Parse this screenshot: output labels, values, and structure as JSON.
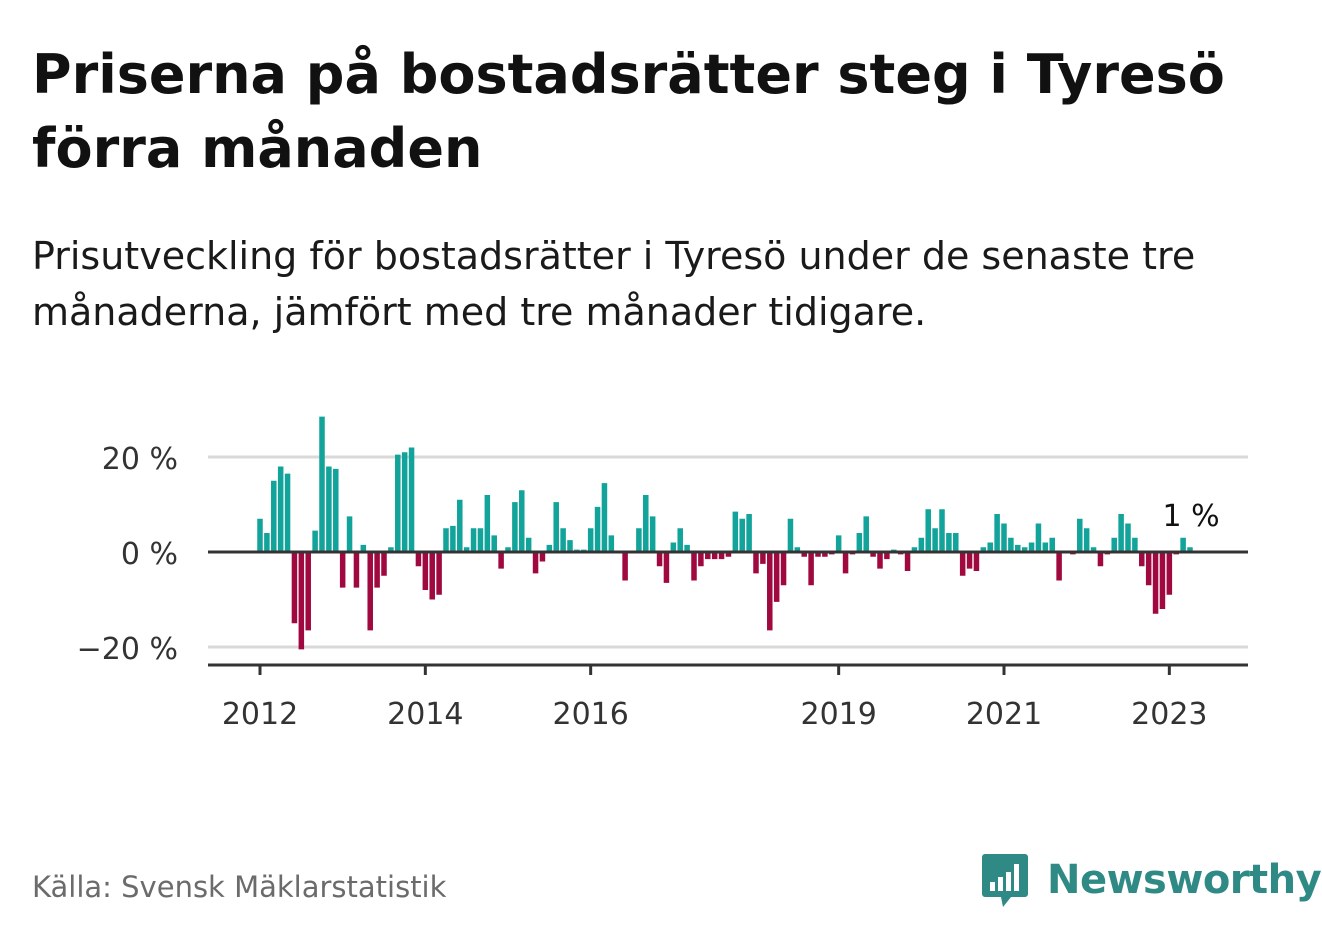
{
  "title": "Priserna på bostadsrätter steg i Tyresö förra månaden",
  "subtitle": "Prisutveckling för bostadsrätter i Tyresö under de senaste tre månaderna, jämfört med tre månader tidigare.",
  "source": "Källa: Svensk Mäklarstatistik",
  "logo_text": "Newsworthy",
  "colors": {
    "positive": "#12a39a",
    "negative": "#a0093f",
    "axis": "#333333",
    "grid": "#d9d9d9",
    "logo": "#2f8a86"
  },
  "chart_data": {
    "type": "bar",
    "ylim": [
      -23,
      30
    ],
    "yticks": [
      {
        "value": 20,
        "label": "20 %"
      },
      {
        "value": 0,
        "label": "0 %"
      },
      {
        "value": -20,
        "label": "−20 %"
      }
    ],
    "xticks": [
      {
        "value": 2012,
        "label": "2012"
      },
      {
        "value": 2014,
        "label": "2014"
      },
      {
        "value": 2016,
        "label": "2016"
      },
      {
        "value": 2019,
        "label": "2019"
      },
      {
        "value": 2021,
        "label": "2021"
      },
      {
        "value": 2023,
        "label": "2023"
      }
    ],
    "start": 2012,
    "step": 0.0833,
    "values": [
      7,
      4,
      15,
      18,
      16.5,
      -15,
      -20.5,
      -16.5,
      4.5,
      28.5,
      18,
      17.5,
      -7.5,
      7.5,
      -7.5,
      1.5,
      -16.5,
      -7.5,
      -5,
      1,
      20.5,
      21,
      22,
      -3,
      -8,
      -10,
      -9,
      5,
      5.5,
      11,
      1,
      5,
      5,
      12,
      3.5,
      -3.5,
      1,
      10.5,
      13,
      3,
      -4.5,
      -2,
      1.5,
      10.5,
      5,
      2.5,
      0.5,
      0.5,
      5,
      9.5,
      14.5,
      3.5,
      0,
      -6,
      0,
      5,
      12,
      7.5,
      -3,
      -6.5,
      2,
      5,
      1.5,
      -6,
      -3,
      -1.5,
      -1.5,
      -1.5,
      -1,
      8.5,
      7,
      8,
      -4.5,
      -2.5,
      -16.5,
      -10.5,
      -7,
      7,
      1,
      -1,
      -7,
      -1,
      -1,
      -0.5,
      3.5,
      -4.5,
      -0.5,
      4,
      7.5,
      -1,
      -3.5,
      -1.5,
      0.5,
      -0.5,
      -4,
      1,
      3,
      9,
      5,
      9,
      4,
      4,
      -5,
      -3.5,
      -4,
      1,
      2,
      8,
      6,
      3,
      1.5,
      1,
      2,
      6,
      2,
      3,
      -6,
      0,
      -0.5,
      7,
      5,
      1,
      -3,
      -0.5,
      3,
      8,
      6,
      3,
      -3,
      -7,
      -13,
      -12,
      -9,
      -0.5,
      3,
      1
    ],
    "annotation": {
      "label": "1 %"
    }
  }
}
